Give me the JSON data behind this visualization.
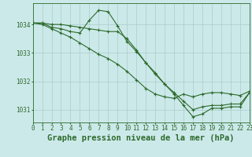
{
  "title": "Graphe pression niveau de la mer (hPa)",
  "background_color": "#cce9e9",
  "grid_color": "#aacccc",
  "line_color": "#2d6a2d",
  "marker_color": "#2d6a2d",
  "xlim": [
    0,
    23
  ],
  "ylim": [
    1030.55,
    1034.75
  ],
  "yticks": [
    1031,
    1032,
    1033,
    1034
  ],
  "xticks": [
    0,
    1,
    2,
    3,
    4,
    5,
    6,
    7,
    8,
    9,
    10,
    11,
    12,
    13,
    14,
    15,
    16,
    17,
    18,
    19,
    20,
    21,
    22,
    23
  ],
  "series": [
    {
      "x": [
        0,
        1,
        2,
        3,
        4,
        5,
        6,
        7,
        8,
        9,
        10,
        11,
        12,
        13,
        14,
        15,
        16,
        17,
        18,
        19,
        20,
        21,
        22,
        23
      ],
      "y": [
        1034.05,
        1034.05,
        1033.9,
        1033.85,
        1033.75,
        1033.7,
        1034.15,
        1034.5,
        1034.45,
        1033.95,
        1033.4,
        1033.05,
        1032.65,
        1032.3,
        1031.9,
        1031.55,
        1031.15,
        1030.75,
        1030.85,
        1031.05,
        1031.05,
        1031.1,
        1031.1,
        1031.6
      ]
    },
    {
      "x": [
        0,
        1,
        2,
        3,
        4,
        5,
        6,
        7,
        8,
        9,
        10,
        11,
        12,
        13,
        14,
        15,
        16,
        17,
        18,
        19,
        20,
        21,
        22,
        23
      ],
      "y": [
        1034.05,
        1034.05,
        1034.0,
        1034.0,
        1033.95,
        1033.9,
        1033.85,
        1033.8,
        1033.75,
        1033.75,
        1033.5,
        1033.1,
        1032.65,
        1032.25,
        1031.9,
        1031.6,
        1031.3,
        1031.0,
        1031.1,
        1031.15,
        1031.15,
        1031.2,
        1031.2,
        1031.6
      ]
    },
    {
      "x": [
        0,
        1,
        2,
        3,
        4,
        5,
        6,
        7,
        8,
        9,
        10,
        11,
        12,
        13,
        14,
        15,
        16,
        17,
        18,
        19,
        20,
        21,
        22,
        23
      ],
      "y": [
        1034.05,
        1034.0,
        1033.85,
        1033.7,
        1033.55,
        1033.35,
        1033.15,
        1032.95,
        1032.8,
        1032.6,
        1032.35,
        1032.05,
        1031.75,
        1031.55,
        1031.45,
        1031.4,
        1031.55,
        1031.45,
        1031.55,
        1031.6,
        1031.6,
        1031.55,
        1031.5,
        1031.65
      ]
    }
  ],
  "title_fontsize": 7.5,
  "tick_fontsize": 5.5,
  "figsize": [
    3.2,
    2.0
  ],
  "dpi": 100
}
